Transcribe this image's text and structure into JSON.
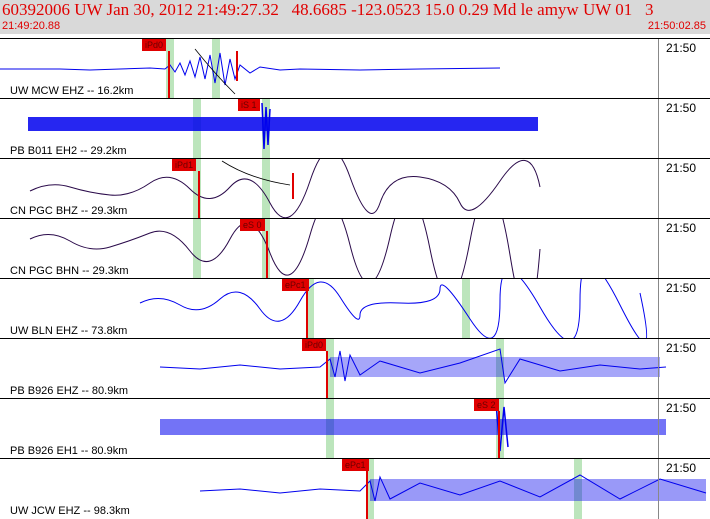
{
  "header": {
    "title": "60392006 UW Jan 30, 2012 21:49:27.32   48.6685 -123.0523 15.0 0.29 Md le amyw UW 01   3",
    "time_start": "21:49:20.88",
    "time_end": "21:50:02.85"
  },
  "colors": {
    "trace_blue": "#0000ee",
    "trace_dark": "#2a0a4a",
    "pick_red": "#e00000",
    "band_green": "#a6dca6",
    "header_bg": "#d9d9d9"
  },
  "traces": [
    {
      "label": "UW MCW EHZ -- 16.2km",
      "time": "21:50",
      "pick": "iPd0",
      "color": "trace_blue"
    },
    {
      "label": "PB B011 EH2 -- 29.2km",
      "time": "21:50",
      "pick": "iS 1",
      "color": "trace_blue"
    },
    {
      "label": "CN PGC BHZ -- 29.3km",
      "time": "21:50",
      "pick": "iPd1",
      "color": "trace_dark"
    },
    {
      "label": "CN PGC BHN -- 29.3km",
      "time": "21:50",
      "pick": "eS 0",
      "color": "trace_dark"
    },
    {
      "label": "UW BLN EHZ -- 73.8km",
      "time": "21:50",
      "pick": "ePc1",
      "color": "trace_blue"
    },
    {
      "label": "PB B926 EHZ -- 80.9km",
      "time": "21:50",
      "pick": "iPd0",
      "color": "trace_blue"
    },
    {
      "label": "PB B926 EH1 -- 80.9km",
      "time": "21:50",
      "pick": "eS 2",
      "color": "trace_blue"
    },
    {
      "label": "UW JCW EHZ -- 98.3km",
      "time": "21:50",
      "pick": "ePc1",
      "color": "trace_blue"
    }
  ]
}
